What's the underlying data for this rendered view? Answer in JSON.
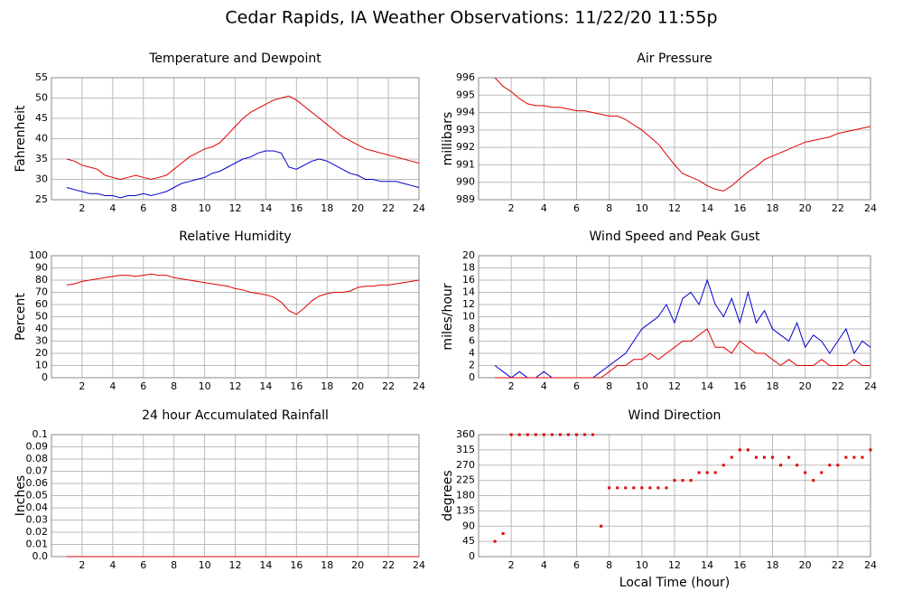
{
  "title": "Cedar Rapids, IA Weather Observations: 11/22/20 11:55p",
  "chart_data": [
    {
      "type": "line",
      "title": "Temperature and Dewpoint",
      "ylabel": "Fahrenheit",
      "x": [
        1,
        1.5,
        2,
        2.5,
        3,
        3.5,
        4,
        4.5,
        5,
        5.5,
        6,
        6.5,
        7,
        7.5,
        8,
        8.5,
        9,
        9.5,
        10,
        10.5,
        11,
        11.5,
        12,
        12.5,
        13,
        13.5,
        14,
        14.5,
        15,
        15.5,
        16,
        16.5,
        17,
        17.5,
        18,
        18.5,
        19,
        19.5,
        20,
        20.5,
        21,
        21.5,
        22,
        22.5,
        23,
        23.5,
        24
      ],
      "series": [
        {
          "color": "#e00000",
          "values": [
            35,
            34.5,
            33.5,
            33,
            32.5,
            31,
            30.5,
            30,
            30.5,
            31,
            30.5,
            30,
            30.5,
            31,
            32.5,
            34,
            35.5,
            36.5,
            37.5,
            38,
            39,
            41,
            43,
            45,
            46.5,
            47.5,
            48.5,
            49.5,
            50,
            50.5,
            49.5,
            48,
            46.5,
            45,
            43.5,
            42,
            40.5,
            39.5,
            38.5,
            37.5,
            37,
            36.5,
            36,
            35.5,
            35,
            34.5,
            34
          ]
        },
        {
          "color": "#0000cc",
          "values": [
            28,
            27.5,
            27,
            26.5,
            26.5,
            26,
            26,
            25.5,
            26,
            26,
            26.5,
            26,
            26.5,
            27,
            28,
            29,
            29.5,
            30,
            30.5,
            31.5,
            32,
            33,
            34,
            35,
            35.5,
            36.5,
            37,
            37,
            36.5,
            33,
            32.5,
            33.5,
            34.5,
            35,
            34.5,
            33.5,
            32.5,
            31.5,
            31,
            30,
            30,
            29.5,
            29.5,
            29.5,
            29,
            28.5,
            28
          ]
        }
      ],
      "xlim": [
        0,
        24
      ],
      "xticks": [
        2,
        4,
        6,
        8,
        10,
        12,
        14,
        16,
        18,
        20,
        22,
        24
      ],
      "ylim": [
        25,
        55
      ],
      "yticks": [
        25,
        30,
        35,
        40,
        45,
        50,
        55
      ],
      "grid": true
    },
    {
      "type": "line",
      "title": "Air Pressure",
      "ylabel": "millibars",
      "x": [
        1,
        1.5,
        2,
        2.5,
        3,
        3.5,
        4,
        4.5,
        5,
        5.5,
        6,
        6.5,
        7,
        7.5,
        8,
        8.5,
        9,
        9.5,
        10,
        10.5,
        11,
        11.5,
        12,
        12.5,
        13,
        13.5,
        14,
        14.5,
        15,
        15.5,
        16,
        16.5,
        17,
        17.5,
        18,
        18.5,
        19,
        19.5,
        20,
        20.5,
        21,
        21.5,
        22,
        22.5,
        23,
        23.5,
        24
      ],
      "series": [
        {
          "color": "#e00000",
          "values": [
            996,
            995.5,
            995.2,
            994.8,
            994.5,
            994.4,
            994.4,
            994.3,
            994.3,
            994.2,
            994.1,
            994.1,
            994,
            993.9,
            993.8,
            993.8,
            993.6,
            993.3,
            993,
            992.6,
            992.2,
            991.6,
            991,
            990.5,
            990.3,
            990.1,
            989.8,
            989.6,
            989.5,
            989.8,
            990.2,
            990.6,
            990.9,
            991.3,
            991.5,
            991.7,
            991.9,
            992.1,
            992.3,
            992.4,
            992.5,
            992.6,
            992.8,
            992.9,
            993,
            993.1,
            993.2
          ]
        }
      ],
      "xlim": [
        0,
        24
      ],
      "xticks": [
        2,
        4,
        6,
        8,
        10,
        12,
        14,
        16,
        18,
        20,
        22,
        24
      ],
      "ylim": [
        989,
        996
      ],
      "yticks": [
        989,
        990,
        991,
        992,
        993,
        994,
        995,
        996
      ],
      "grid": true
    },
    {
      "type": "line",
      "title": "Relative Humidity",
      "ylabel": "Percent",
      "x": [
        1,
        1.5,
        2,
        2.5,
        3,
        3.5,
        4,
        4.5,
        5,
        5.5,
        6,
        6.5,
        7,
        7.5,
        8,
        8.5,
        9,
        9.5,
        10,
        10.5,
        11,
        11.5,
        12,
        12.5,
        13,
        13.5,
        14,
        14.5,
        15,
        15.5,
        16,
        16.5,
        17,
        17.5,
        18,
        18.5,
        19,
        19.5,
        20,
        20.5,
        21,
        21.5,
        22,
        22.5,
        23,
        23.5,
        24
      ],
      "series": [
        {
          "color": "#e00000",
          "values": [
            76,
            77,
            79,
            80,
            81,
            82,
            83,
            84,
            84,
            83,
            84,
            85,
            84,
            84,
            82,
            81,
            80,
            79,
            78,
            77,
            76,
            75,
            73,
            72,
            70,
            69,
            68,
            66,
            62,
            55,
            52,
            57,
            63,
            67,
            69,
            70,
            70,
            71,
            74,
            75,
            75,
            76,
            76,
            77,
            78,
            79,
            80
          ]
        }
      ],
      "xlim": [
        0,
        24
      ],
      "xticks": [
        2,
        4,
        6,
        8,
        10,
        12,
        14,
        16,
        18,
        20,
        22,
        24
      ],
      "ylim": [
        0,
        100
      ],
      "yticks": [
        0,
        10,
        20,
        30,
        40,
        50,
        60,
        70,
        80,
        90,
        100
      ],
      "grid": true
    },
    {
      "type": "line",
      "title": "Wind Speed and Peak Gust",
      "ylabel": "miles/hour",
      "x": [
        1,
        1.5,
        2,
        2.5,
        3,
        3.5,
        4,
        4.5,
        5,
        5.5,
        6,
        6.5,
        7,
        7.5,
        8,
        8.5,
        9,
        9.5,
        10,
        10.5,
        11,
        11.5,
        12,
        12.5,
        13,
        13.5,
        14,
        14.5,
        15,
        15.5,
        16,
        16.5,
        17,
        17.5,
        18,
        18.5,
        19,
        19.5,
        20,
        20.5,
        21,
        21.5,
        22,
        22.5,
        23,
        23.5,
        24
      ],
      "series": [
        {
          "color": "#0000cc",
          "values": [
            2,
            1,
            0,
            1,
            0,
            0,
            1,
            0,
            0,
            0,
            0,
            0,
            0,
            1,
            2,
            3,
            4,
            6,
            8,
            9,
            10,
            12,
            9,
            13,
            14,
            12,
            16,
            12,
            10,
            13,
            9,
            14,
            9,
            11,
            8,
            7,
            6,
            9,
            5,
            7,
            6,
            4,
            6,
            8,
            4,
            6,
            5
          ]
        },
        {
          "color": "#e00000",
          "values": [
            0,
            0,
            0,
            0,
            0,
            0,
            0,
            0,
            0,
            0,
            0,
            0,
            0,
            0,
            1,
            2,
            2,
            3,
            3,
            4,
            3,
            4,
            5,
            6,
            6,
            7,
            8,
            5,
            5,
            4,
            6,
            5,
            4,
            4,
            3,
            2,
            3,
            2,
            2,
            2,
            3,
            2,
            2,
            2,
            3,
            2,
            2
          ]
        }
      ],
      "xlim": [
        0,
        24
      ],
      "xticks": [
        2,
        4,
        6,
        8,
        10,
        12,
        14,
        16,
        18,
        20,
        22,
        24
      ],
      "ylim": [
        0,
        20
      ],
      "yticks": [
        0,
        2,
        4,
        6,
        8,
        10,
        12,
        14,
        16,
        18,
        20
      ],
      "grid": true
    },
    {
      "type": "line",
      "title": "24 hour Accumulated Rainfall",
      "ylabel": "Inches",
      "x": [
        1,
        24
      ],
      "series": [
        {
          "color": "#e00000",
          "values": [
            0,
            0
          ]
        }
      ],
      "xlim": [
        0,
        24
      ],
      "xticks": [
        2,
        4,
        6,
        8,
        10,
        12,
        14,
        16,
        18,
        20,
        22,
        24
      ],
      "ylim": [
        0,
        0.1
      ],
      "yticks": [
        {
          "value": 0,
          "label": "0.0"
        },
        0.01,
        0.02,
        0.03,
        0.04,
        0.05,
        0.06,
        0.07,
        0.08,
        0.09,
        0.1
      ],
      "grid": true
    },
    {
      "type": "scatter",
      "title": "Wind Direction",
      "ylabel": "degrees",
      "xlabel": "Local Time (hour)",
      "x": [
        1,
        1.5,
        2,
        2.5,
        3,
        3.5,
        4,
        4.5,
        5,
        5.5,
        6,
        6.5,
        7,
        7.5,
        8,
        8.5,
        9,
        9.5,
        10,
        10.5,
        11,
        11.5,
        12,
        12.5,
        13,
        13.5,
        14,
        14.5,
        15,
        15.5,
        16,
        16.5,
        17,
        17.5,
        18,
        18.5,
        19,
        19.5,
        20,
        20.5,
        21,
        21.5,
        22,
        22.5,
        23,
        23.5,
        24
      ],
      "series": [
        {
          "color": "#e00000",
          "values": [
            45,
            68,
            360,
            360,
            360,
            360,
            360,
            360,
            360,
            360,
            360,
            360,
            360,
            90,
            203,
            203,
            203,
            203,
            203,
            203,
            203,
            203,
            225,
            225,
            225,
            248,
            248,
            248,
            270,
            293,
            315,
            315,
            293,
            293,
            293,
            270,
            293,
            270,
            248,
            225,
            248,
            270,
            270,
            293,
            293,
            293,
            315
          ]
        }
      ],
      "xlim": [
        0,
        24
      ],
      "xticks": [
        2,
        4,
        6,
        8,
        10,
        12,
        14,
        16,
        18,
        20,
        22,
        24
      ],
      "ylim": [
        0,
        360
      ],
      "yticks": [
        0,
        45,
        90,
        135,
        180,
        225,
        270,
        315,
        360
      ],
      "grid": true
    }
  ]
}
